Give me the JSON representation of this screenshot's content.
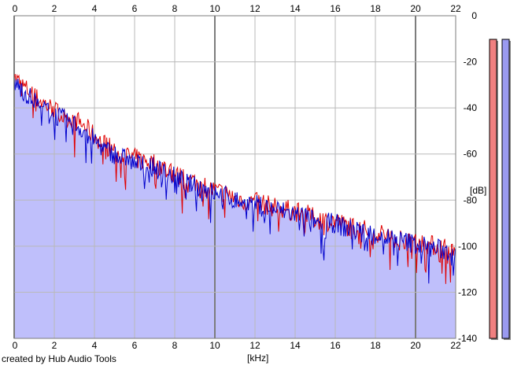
{
  "credit": "created by Hub Audio Tools",
  "colors": {
    "left_channel": "#e00000",
    "right_channel": "#0000cc",
    "fill": "#bfbffb",
    "grid": "#b9b9b9",
    "grid_major": "#7d7d7d",
    "meter_left": "#f08080",
    "meter_right": "#9a9af0"
  },
  "chart_data": {
    "type": "line",
    "xlabel": "[kHz]",
    "ylabel": "[dB]",
    "xlim": [
      0,
      22
    ],
    "ylim": [
      -140,
      0
    ],
    "x_ticks": [
      "0",
      "2",
      "4",
      "6",
      "8",
      "10",
      "12",
      "14",
      "16",
      "18",
      "20",
      "22"
    ],
    "y_ticks": [
      "0",
      "-20",
      "-40",
      "-60",
      "-80",
      "-100",
      "-120",
      "-140"
    ],
    "x_tick_values": [
      0,
      2,
      4,
      6,
      8,
      10,
      12,
      14,
      16,
      18,
      20,
      22
    ],
    "y_tick_values": [
      0,
      -20,
      -40,
      -60,
      -80,
      -100,
      -120,
      -140
    ],
    "grid": true,
    "x": [
      0.0,
      0.5,
      1.0,
      1.5,
      2.0,
      2.5,
      3.0,
      3.5,
      4.0,
      4.5,
      5.0,
      5.5,
      6.0,
      6.5,
      7.0,
      7.5,
      8.0,
      8.5,
      9.0,
      9.5,
      10.0,
      10.5,
      11.0,
      11.5,
      12.0,
      12.5,
      13.0,
      13.5,
      14.0,
      14.5,
      15.0,
      15.5,
      16.0,
      16.5,
      17.0,
      17.5,
      18.0,
      18.5,
      19.0,
      19.5,
      20.0,
      20.5,
      21.0,
      21.5,
      22.0
    ],
    "series": [
      {
        "values": [
          -27,
          -31,
          -35,
          -38,
          -41,
          -44,
          -45,
          -48,
          -52,
          -56,
          -58,
          -60,
          -62,
          -63,
          -64,
          -66,
          -69,
          -71,
          -72,
          -74,
          -76,
          -77,
          -79,
          -80,
          -81,
          -82,
          -83,
          -84,
          -85,
          -86,
          -88,
          -89,
          -89,
          -91,
          -92,
          -93,
          -94,
          -95,
          -96,
          -97,
          -98,
          -99,
          -100,
          -101,
          -103
        ]
      },
      {
        "values": [
          -29,
          -33,
          -37,
          -40,
          -43,
          -45,
          -47,
          -50,
          -54,
          -58,
          -60,
          -62,
          -64,
          -65,
          -66,
          -68,
          -70,
          -72,
          -74,
          -75,
          -77,
          -78,
          -80,
          -81,
          -82,
          -83,
          -84,
          -85,
          -86,
          -87,
          -89,
          -90,
          -90,
          -92,
          -93,
          -94,
          -95,
          -96,
          -97,
          -98,
          -99,
          -100,
          -101,
          -102,
          -104
        ]
      }
    ],
    "meters": [
      {
        "level_db": -140
      },
      {
        "level_db": -140
      }
    ]
  }
}
